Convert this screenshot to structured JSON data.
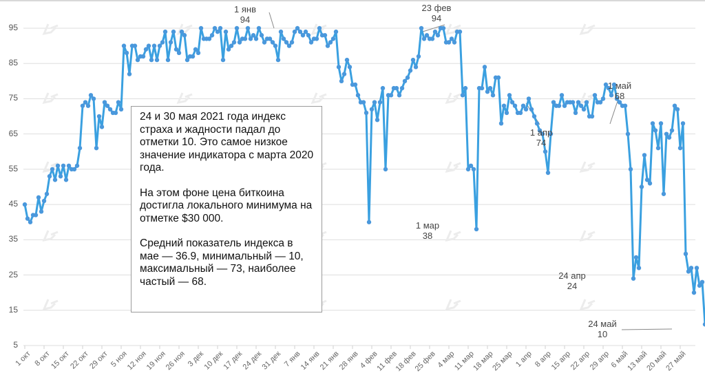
{
  "chart_data": {
    "type": "line",
    "title": "",
    "xlabel": "",
    "ylabel": "",
    "ylim": [
      5,
      95
    ],
    "yticks": [
      5,
      15,
      25,
      35,
      45,
      55,
      65,
      75,
      85,
      95
    ],
    "grid": true,
    "legend": null,
    "line_color": "#3aa0e0",
    "x_tick_labels": [
      "1 окт",
      "8 окт",
      "15 окт",
      "22 окт",
      "29 окт",
      "5 ноя",
      "12 ноя",
      "19 ноя",
      "26 ноя",
      "3 дек",
      "10 дек",
      "17 дек",
      "24 дек",
      "31 дек",
      "7 янв",
      "14 янв",
      "21 янв",
      "28 янв",
      "4 фев",
      "11 фев",
      "18 фев",
      "25 фев",
      "4 мар",
      "11 мар",
      "18 мар",
      "25 мар",
      "1 апр",
      "8 апр",
      "15 апр",
      "22 апр",
      "29 апр",
      "6 май",
      "13 май",
      "20 май",
      "27 май"
    ],
    "x_start": "1 окт 2020",
    "x_end": "31 май 2021",
    "series": [
      {
        "name": "Индекс страха и жадности",
        "values": [
          45,
          41,
          40,
          42,
          42,
          47,
          43,
          46,
          48,
          53,
          55,
          52,
          56,
          53,
          56,
          52,
          56,
          55,
          55,
          56,
          61,
          73,
          74,
          73,
          76,
          75,
          61,
          70,
          67,
          74,
          73,
          72,
          71,
          71,
          74,
          72,
          90,
          88,
          82,
          90,
          90,
          86,
          87,
          87,
          89,
          90,
          86,
          90,
          86,
          90,
          91,
          94,
          86,
          91,
          94,
          89,
          88,
          94,
          93,
          86,
          87,
          87,
          89,
          88,
          95,
          92,
          92,
          92,
          93,
          95,
          94,
          95,
          86,
          94,
          89,
          90,
          91,
          95,
          91,
          92,
          92,
          95,
          92,
          93,
          92,
          95,
          93,
          91,
          92,
          92,
          91,
          90,
          86,
          94,
          92,
          91,
          90,
          91,
          94,
          95,
          94,
          93,
          94,
          93,
          91,
          92,
          92,
          95,
          93,
          93,
          90,
          91,
          92,
          94,
          84,
          80,
          82,
          86,
          84,
          79,
          79,
          76,
          74,
          74,
          71,
          40,
          72,
          74,
          69,
          74,
          78,
          55,
          76,
          76,
          78,
          78,
          76,
          78,
          80,
          81,
          83,
          86,
          84,
          87,
          95,
          92,
          93,
          92,
          92,
          94,
          93,
          95,
          95,
          91,
          91,
          92,
          91,
          94,
          94,
          76,
          78,
          55,
          56,
          55,
          38,
          78,
          78,
          84,
          77,
          78,
          76,
          81,
          81,
          68,
          73,
          71,
          76,
          74,
          73,
          71,
          71,
          73,
          72,
          75,
          72,
          70,
          68,
          66,
          65,
          60,
          54,
          65,
          74,
          73,
          73,
          76,
          73,
          74,
          74,
          74,
          71,
          74,
          73,
          72,
          74,
          70,
          70,
          76,
          74,
          74,
          75,
          79,
          78,
          76,
          79,
          75,
          74,
          73,
          73,
          65,
          55,
          24,
          30,
          27,
          50,
          59,
          52,
          51,
          68,
          66,
          61,
          68,
          48,
          65,
          64,
          66,
          73,
          72,
          61,
          68,
          31,
          26,
          27,
          20,
          27,
          22,
          23,
          11,
          19,
          12,
          14,
          10,
          22,
          22,
          27,
          21,
          18,
          10,
          18,
          20
        ]
      }
    ],
    "annotations": [
      {
        "date": "1 янв",
        "value": 94
      },
      {
        "date": "23 фев",
        "value": 94
      },
      {
        "date": "1 мар",
        "value": 38
      },
      {
        "date": "1 апр",
        "value": 74
      },
      {
        "date": "24 апр",
        "value": 24
      },
      {
        "date": "1 май",
        "value": 68
      },
      {
        "date": "24 май",
        "value": 10
      }
    ]
  },
  "infobox": {
    "paragraphs": [
      "24 и 30 мая 2021 года индекс страха и жадности падал до отметки 10. Это самое низкое значение индикатора с марта 2020 года.",
      "На этом фоне цена биткоина достигла локального минимума на отметке $30 000.",
      "Средний показатель индекса в мае — 36.9, минимальный — 10, максимальный — 73, наиболее частый — 68."
    ]
  }
}
